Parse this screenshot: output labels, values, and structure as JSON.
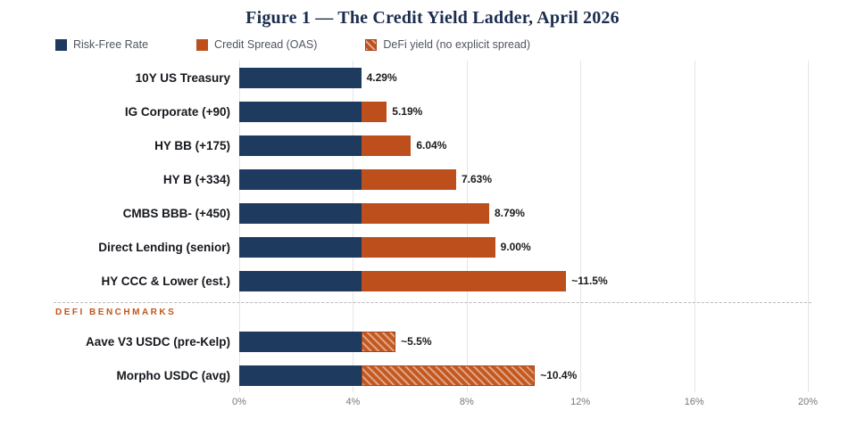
{
  "title": "Figure 1 — The Credit Yield Ladder, April 2026",
  "section_label": "DEFI BENCHMARKS",
  "colors": {
    "risk_free": "#1f3a5f",
    "credit_spread": "#bd4f1d",
    "defi_hatch": "#c4581f",
    "title_text": "#1c2e4e",
    "section_label_text": "#c0561e"
  },
  "legend": [
    {
      "label": "Risk-Free Rate",
      "swatch": "navy"
    },
    {
      "label": "Credit Spread (OAS)",
      "swatch": "rust"
    },
    {
      "label": "DeFi yield (no explicit spread)",
      "swatch": "hatch"
    }
  ],
  "chart_data": {
    "type": "bar",
    "orientation": "horizontal",
    "title": "Figure 1 — The Credit Yield Ladder, April 2026",
    "xlabel": "",
    "ylabel": "",
    "xlim": [
      0,
      20
    ],
    "x_ticks": [
      "0%",
      "4%",
      "8%",
      "12%",
      "16%",
      "20%"
    ],
    "x_tick_values": [
      0,
      4,
      8,
      12,
      16,
      20
    ],
    "grid": "vertical",
    "legend_position": "top",
    "series_names": [
      "Risk-Free Rate",
      "Credit Spread (OAS)",
      "DeFi yield (no explicit spread)"
    ],
    "risk_free_rate": 4.29,
    "rows": [
      {
        "label": "10Y US Treasury",
        "risk_free": 4.29,
        "spread": 0,
        "hatched": false,
        "total": 4.29,
        "total_label": "4.29%",
        "section": "credit"
      },
      {
        "label": "IG Corporate (+90)",
        "risk_free": 4.29,
        "spread": 0.9,
        "hatched": false,
        "total": 5.19,
        "total_label": "5.19%",
        "section": "credit"
      },
      {
        "label": "HY BB (+175)",
        "risk_free": 4.29,
        "spread": 1.75,
        "hatched": false,
        "total": 6.04,
        "total_label": "6.04%",
        "section": "credit"
      },
      {
        "label": "HY B (+334)",
        "risk_free": 4.29,
        "spread": 3.34,
        "hatched": false,
        "total": 7.63,
        "total_label": "7.63%",
        "section": "credit"
      },
      {
        "label": "CMBS BBB- (+450)",
        "risk_free": 4.29,
        "spread": 4.5,
        "hatched": false,
        "total": 8.79,
        "total_label": "8.79%",
        "section": "credit"
      },
      {
        "label": "Direct Lending (senior)",
        "risk_free": 4.29,
        "spread": 4.71,
        "hatched": false,
        "total": 9.0,
        "total_label": "9.00%",
        "section": "credit"
      },
      {
        "label": "HY CCC & Lower (est.)",
        "risk_free": 4.29,
        "spread": 7.21,
        "hatched": false,
        "total": 11.5,
        "total_label": "~11.5%",
        "section": "credit"
      },
      {
        "label": "Aave V3 USDC (pre-Kelp)",
        "risk_free": 4.29,
        "spread": 1.21,
        "hatched": true,
        "total": 5.5,
        "total_label": "~5.5%",
        "section": "defi"
      },
      {
        "label": "Morpho USDC (avg)",
        "risk_free": 4.29,
        "spread": 6.11,
        "hatched": true,
        "total": 10.4,
        "total_label": "~10.4%",
        "section": "defi"
      }
    ]
  }
}
